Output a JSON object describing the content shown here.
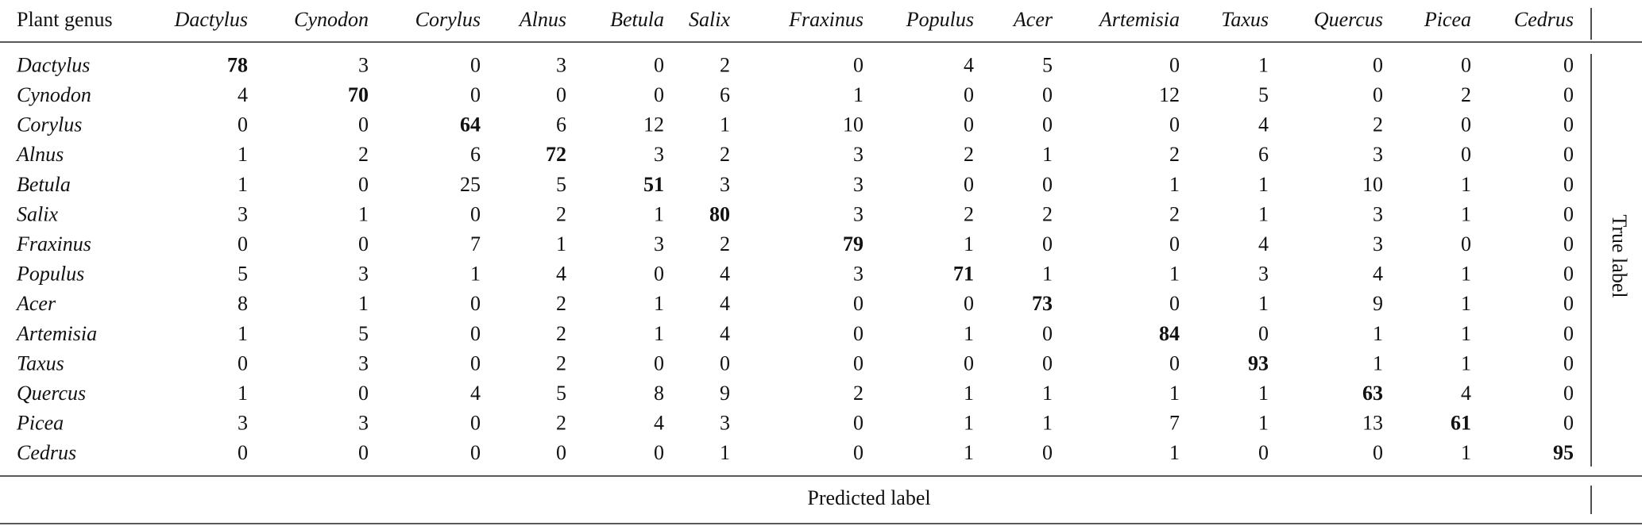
{
  "table": {
    "header": [
      "Plant genus",
      "Dactylus",
      "Cynodon",
      "Corylus",
      "Alnus",
      "Betula",
      "Salix",
      "Fraxinus",
      "Populus",
      "Acer",
      "Artemisia",
      "Taxus",
      "Quercus",
      "Picea",
      "Cedrus"
    ],
    "rows": [
      [
        "Dactylus",
        78,
        3,
        0,
        3,
        0,
        2,
        0,
        4,
        5,
        0,
        1,
        0,
        0,
        0
      ],
      [
        "Cynodon",
        4,
        70,
        0,
        0,
        0,
        6,
        1,
        0,
        0,
        12,
        5,
        0,
        2,
        0
      ],
      [
        "Corylus",
        0,
        0,
        64,
        6,
        12,
        1,
        10,
        0,
        0,
        0,
        4,
        2,
        0,
        0
      ],
      [
        "Alnus",
        1,
        2,
        6,
        72,
        3,
        2,
        3,
        2,
        1,
        2,
        6,
        3,
        0,
        0
      ],
      [
        "Betula",
        1,
        0,
        25,
        5,
        51,
        3,
        3,
        0,
        0,
        1,
        1,
        10,
        1,
        0
      ],
      [
        "Salix",
        3,
        1,
        0,
        2,
        1,
        80,
        3,
        2,
        2,
        2,
        1,
        3,
        1,
        0
      ],
      [
        "Fraxinus",
        0,
        0,
        7,
        1,
        3,
        2,
        79,
        1,
        0,
        0,
        4,
        3,
        0,
        0
      ],
      [
        "Populus",
        5,
        3,
        1,
        4,
        0,
        4,
        3,
        71,
        1,
        1,
        3,
        4,
        1,
        0
      ],
      [
        "Acer",
        8,
        1,
        0,
        2,
        1,
        4,
        0,
        0,
        73,
        0,
        1,
        9,
        1,
        0
      ],
      [
        "Artemisia",
        1,
        5,
        0,
        2,
        1,
        4,
        0,
        1,
        0,
        84,
        0,
        1,
        1,
        0
      ],
      [
        "Taxus",
        0,
        3,
        0,
        2,
        0,
        0,
        0,
        0,
        0,
        0,
        93,
        1,
        1,
        0
      ],
      [
        "Quercus",
        1,
        0,
        4,
        5,
        8,
        9,
        2,
        1,
        1,
        1,
        1,
        63,
        4,
        0
      ],
      [
        "Picea",
        3,
        3,
        0,
        2,
        4,
        3,
        0,
        1,
        1,
        7,
        1,
        13,
        61,
        0
      ],
      [
        "Cedrus",
        0,
        0,
        0,
        0,
        0,
        1,
        0,
        1,
        0,
        1,
        0,
        0,
        1,
        95
      ]
    ],
    "x_label": "Predicted label",
    "y_label": "True label"
  }
}
